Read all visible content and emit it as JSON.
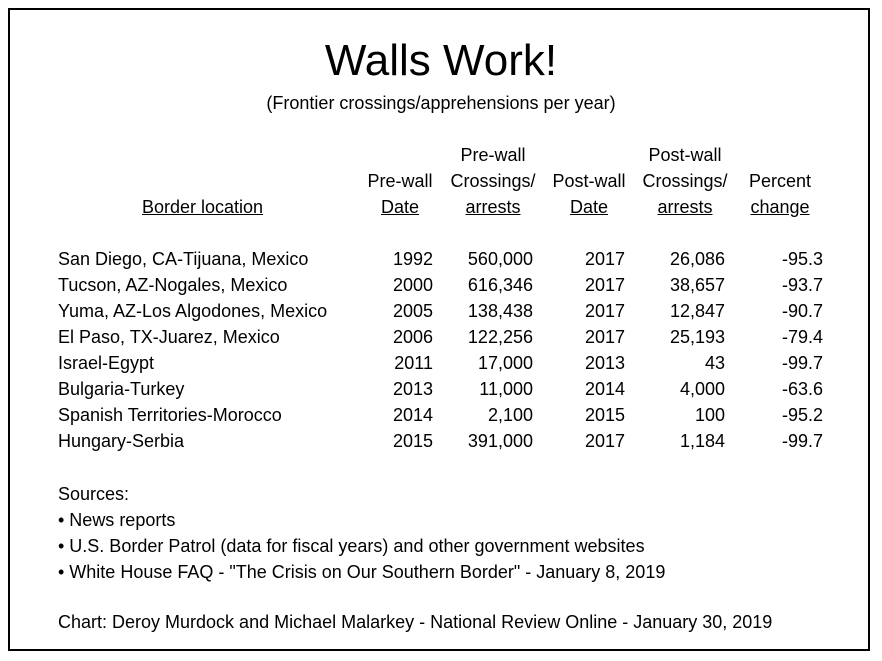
{
  "title": "Walls Work!",
  "subtitle": "(Frontier crossings/apprehensions per year)",
  "headers": {
    "location": "Border location",
    "pre_date_1": "Pre-wall",
    "pre_date_2": "Date",
    "pre_cross_1": "Pre-wall",
    "pre_cross_2": "Crossings/",
    "pre_cross_3": "arrests",
    "post_date_1": "Post-wall",
    "post_date_2": "Date",
    "post_cross_1": "Post-wall",
    "post_cross_2": "Crossings/",
    "post_cross_3": "arrests",
    "pct_1": "Percent",
    "pct_2": "change"
  },
  "rows": [
    {
      "location": "San Diego, CA-Tijuana, Mexico",
      "pre_date": "1992",
      "pre_crossings": "560,000",
      "post_date": "2017",
      "post_crossings": "26,086",
      "pct_change": "-95.3"
    },
    {
      "location": "Tucson, AZ-Nogales, Mexico",
      "pre_date": "2000",
      "pre_crossings": "616,346",
      "post_date": "2017",
      "post_crossings": "38,657",
      "pct_change": "-93.7"
    },
    {
      "location": "Yuma, AZ-Los Algodones, Mexico",
      "pre_date": "2005",
      "pre_crossings": "138,438",
      "post_date": "2017",
      "post_crossings": "12,847",
      "pct_change": "-90.7"
    },
    {
      "location": "El Paso, TX-Juarez, Mexico",
      "pre_date": "2006",
      "pre_crossings": "122,256",
      "post_date": "2017",
      "post_crossings": "25,193",
      "pct_change": "-79.4"
    },
    {
      "location": "Israel-Egypt",
      "pre_date": "2011",
      "pre_crossings": "17,000",
      "post_date": "2013",
      "post_crossings": "43",
      "pct_change": "-99.7"
    },
    {
      "location": "Bulgaria-Turkey",
      "pre_date": "2013",
      "pre_crossings": "11,000",
      "post_date": "2014",
      "post_crossings": "4,000",
      "pct_change": "-63.6"
    },
    {
      "location": "Spanish Territories-Morocco",
      "pre_date": "2014",
      "pre_crossings": "2,100",
      "post_date": "2015",
      "post_crossings": "100",
      "pct_change": "-95.2"
    },
    {
      "location": "Hungary-Serbia",
      "pre_date": "2015",
      "pre_crossings": "391,000",
      "post_date": "2017",
      "post_crossings": "1,184",
      "pct_change": "-99.7"
    }
  ],
  "sources": {
    "heading": "Sources:",
    "items": [
      "• News reports",
      "• U.S. Border Patrol (data for fiscal years) and other government websites",
      "• White House FAQ - \"The Crisis on Our Southern Border\" - January 8, 2019"
    ]
  },
  "credit": "Chart: Deroy Murdock and Michael Malarkey - National Review Online - January 30, 2019"
}
